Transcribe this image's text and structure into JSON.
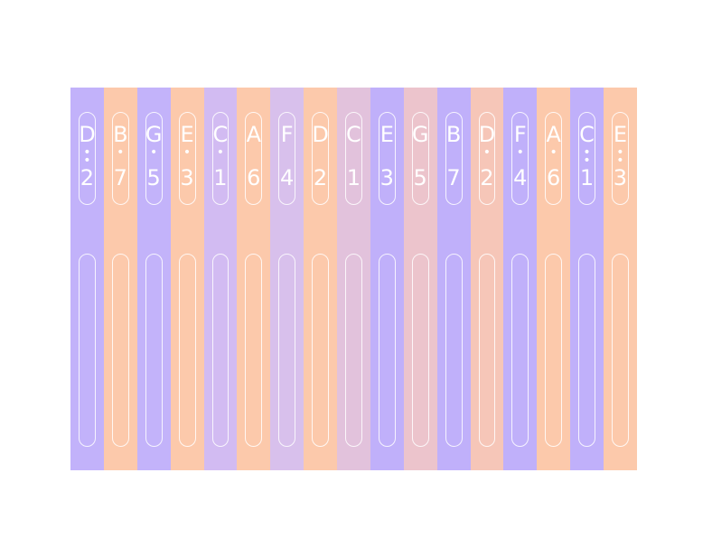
{
  "keys": [
    {
      "note": "D",
      "number": "2",
      "dots": 2,
      "color": "#c2b2fa"
    },
    {
      "note": "B",
      "number": "7",
      "dots": 1,
      "color": "#fcc9ab"
    },
    {
      "note": "G",
      "number": "5",
      "dots": 1,
      "color": "#c3b3fa"
    },
    {
      "note": "E",
      "number": "3",
      "dots": 1,
      "color": "#fcc9ab"
    },
    {
      "note": "C",
      "number": "1",
      "dots": 1,
      "color": "#d2bbf2"
    },
    {
      "note": "A",
      "number": "6",
      "dots": 0,
      "color": "#fcc9ab"
    },
    {
      "note": "F",
      "number": "4",
      "dots": 0,
      "color": "#d8c0ec"
    },
    {
      "note": "D",
      "number": "2",
      "dots": 0,
      "color": "#fcc9ab"
    },
    {
      "note": "C",
      "number": "1",
      "dots": 0,
      "color": "#e2c2dc"
    },
    {
      "note": "E",
      "number": "3",
      "dots": 0,
      "color": "#c0b0fa"
    },
    {
      "note": "G",
      "number": "5",
      "dots": 0,
      "color": "#ecc4cc"
    },
    {
      "note": "B",
      "number": "7",
      "dots": 0,
      "color": "#c0b0fa"
    },
    {
      "note": "D",
      "number": "2",
      "dots": 1,
      "color": "#f6c6b8"
    },
    {
      "note": "F",
      "number": "4",
      "dots": 1,
      "color": "#c0b0fa"
    },
    {
      "note": "A",
      "number": "6",
      "dots": 1,
      "color": "#fcc9ab"
    },
    {
      "note": "C",
      "number": "1",
      "dots": 2,
      "color": "#c0b0fa"
    },
    {
      "note": "E",
      "number": "3",
      "dots": 2,
      "color": "#fcc9ab"
    }
  ]
}
